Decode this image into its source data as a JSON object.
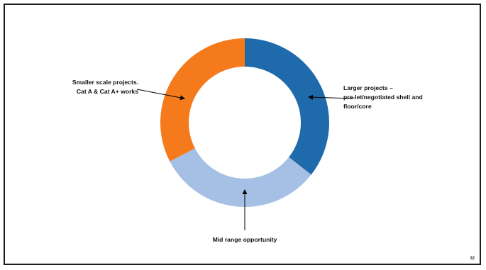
{
  "annotations": {
    "left": [
      "Smaller scale projects.",
      "Cat A & Cat A+ works"
    ],
    "right": [
      "Larger projects –",
      "pre-let/negotiated shell and",
      "floor/core"
    ],
    "bottom": "Mid range opportunity"
  },
  "page_number": "32",
  "donut": {
    "segments": [
      {
        "key": "larger",
        "share": 0.356,
        "color": "#1f6aab"
      },
      {
        "key": "mid",
        "share": 0.318,
        "color": "#a5c0e4"
      },
      {
        "key": "smaller",
        "share": 0.326,
        "color": "#f47a1c"
      }
    ]
  }
}
